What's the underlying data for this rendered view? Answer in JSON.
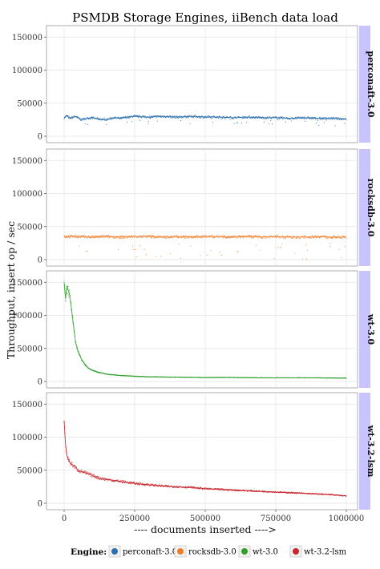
{
  "chart_data": {
    "type": "scatter",
    "title": "PSMDB Storage Engines, iiBench data load",
    "xlabel": "---- documents inserted ---->",
    "ylabel": "Throughput, insert op / sec",
    "xlim": [
      0,
      1000000
    ],
    "ylim": [
      0,
      160000
    ],
    "x_ticks": [
      0,
      250000,
      500000,
      750000,
      1000000
    ],
    "x_tick_labels": [
      "0",
      "250000",
      "500000",
      "750000",
      "1000000"
    ],
    "y_ticks": [
      0,
      50000,
      100000,
      150000
    ],
    "y_tick_labels": [
      "0",
      "50000",
      "100000",
      "150000"
    ],
    "grid": true,
    "legend_position": "bottom",
    "legend_title": "Engine:",
    "facet_strip_color": "#c8c4ff",
    "series": [
      {
        "name": "perconaft-3.0",
        "color": "#2c6fad",
        "x": [
          0,
          10000,
          20000,
          40000,
          60000,
          80000,
          100000,
          125000,
          150000,
          175000,
          200000,
          225000,
          250000,
          300000,
          350000,
          400000,
          450000,
          500000,
          550000,
          600000,
          650000,
          700000,
          750000,
          800000,
          850000,
          900000,
          950000,
          1000000
        ],
        "values": [
          28000,
          31000,
          27000,
          30000,
          25000,
          27000,
          28000,
          26000,
          25000,
          28000,
          27000,
          29000,
          30000,
          29000,
          30000,
          29000,
          30000,
          29000,
          29000,
          28000,
          29000,
          28000,
          28000,
          27000,
          28000,
          27000,
          27000,
          26000
        ]
      },
      {
        "name": "rocksdb-3.0",
        "color": "#f07f2a",
        "x": [
          0,
          10000,
          50000,
          100000,
          150000,
          200000,
          250000,
          300000,
          350000,
          400000,
          450000,
          500000,
          550000,
          600000,
          650000,
          700000,
          750000,
          800000,
          850000,
          900000,
          950000,
          1000000
        ],
        "values": [
          35000,
          35000,
          35000,
          34000,
          35000,
          34000,
          35000,
          35000,
          34000,
          35000,
          34000,
          35000,
          35000,
          34000,
          35000,
          34000,
          35000,
          34000,
          34000,
          35000,
          34000,
          34000
        ]
      },
      {
        "name": "wt-3.0",
        "color": "#2ca02c",
        "x": [
          0,
          5000,
          10000,
          20000,
          30000,
          40000,
          50000,
          60000,
          70000,
          80000,
          100000,
          120000,
          150000,
          200000,
          250000,
          300000,
          400000,
          500000,
          600000,
          700000,
          800000,
          900000,
          1000000
        ],
        "values": [
          150000,
          125000,
          145000,
          130000,
          95000,
          60000,
          45000,
          35000,
          28000,
          22000,
          17000,
          14000,
          11000,
          9000,
          8000,
          7000,
          6500,
          6000,
          6000,
          5500,
          5500,
          5500,
          5000
        ]
      },
      {
        "name": "wt-3.2-lsm",
        "color": "#c9242a",
        "x": [
          0,
          5000,
          10000,
          20000,
          30000,
          50000,
          75000,
          100000,
          125000,
          150000,
          200000,
          250000,
          300000,
          350000,
          400000,
          450000,
          500000,
          550000,
          600000,
          650000,
          700000,
          750000,
          800000,
          850000,
          900000,
          950000,
          1000000
        ],
        "values": [
          125000,
          88000,
          72000,
          62000,
          58000,
          50000,
          46000,
          42000,
          38000,
          36000,
          33000,
          30000,
          28000,
          26000,
          25000,
          24000,
          22000,
          21000,
          20000,
          19000,
          18000,
          17000,
          16000,
          15000,
          14000,
          13000,
          11000
        ]
      }
    ]
  }
}
